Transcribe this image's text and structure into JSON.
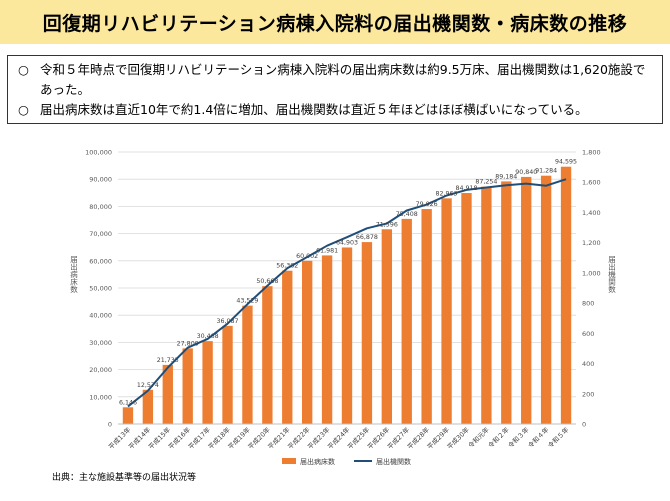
{
  "header": {
    "title": "回復期リハビリテーション病棟入院料の届出機関数・病床数の推移"
  },
  "summary": {
    "bullets": [
      {
        "mark": "○",
        "text": "令和５年時点で回復期リハビリテーション病棟入院料の届出病床数は約9.5万床、届出機関数は1,620施設であった。"
      },
      {
        "mark": "○",
        "text": "届出病床数は直近10年で約1.4倍に増加、届出機関数は直近５年ほどはほぼ横ばいになっている。"
      }
    ]
  },
  "source": "出典：主な施設基準等の届出状況等",
  "chart_data": {
    "type": "bar+line",
    "categories": [
      "平成13年",
      "平成14年",
      "平成15年",
      "平成16年",
      "平成17年",
      "平成18年",
      "平成19年",
      "平成20年",
      "平成21年",
      "平成22年",
      "平成23年",
      "平成24年",
      "平成25年",
      "平成26年",
      "平成27年",
      "平成28年",
      "平成29年",
      "平成30年",
      "令和元年",
      "令和２年",
      "令和３年",
      "令和４年",
      "令和５年"
    ],
    "series": [
      {
        "name": "届出病床数",
        "axis": "left",
        "kind": "bar",
        "color": "#ed7d31",
        "values": [
          6146,
          12574,
          21735,
          27809,
          30468,
          36087,
          43529,
          50668,
          56362,
          60002,
          61981,
          64903,
          66878,
          71596,
          75408,
          79026,
          82963,
          84918,
          87254,
          89184,
          90840,
          91284,
          94595
        ],
        "labels": [
          "6,146",
          "12,574",
          "21,735",
          "27,809",
          "30,468",
          "36,087",
          "43,529",
          "50,668",
          "56,362",
          "60,002",
          "61,981",
          "64,903",
          "66,878",
          "71,596",
          "75,408",
          "79,026",
          "82,963",
          "84,918",
          "87,254",
          "89,184",
          "90,840",
          "91,284",
          "94,595"
        ]
      },
      {
        "name": "届出機関数",
        "axis": "right",
        "kind": "line",
        "color": "#1f4e79",
        "values": [
          116,
          220,
          373,
          505,
          563,
          664,
          793,
          915,
          1031,
          1105,
          1180,
          1236,
          1295,
          1327,
          1413,
          1452,
          1512,
          1549,
          1565,
          1580,
          1591,
          1577,
          1620
        ]
      }
    ],
    "y_left": {
      "label": "届出病床数",
      "min": 0,
      "max": 100000,
      "step": 10000,
      "ticks": [
        "0",
        "10,000",
        "20,000",
        "30,000",
        "40,000",
        "50,000",
        "60,000",
        "70,000",
        "80,000",
        "90,000",
        "100,000"
      ]
    },
    "y_right": {
      "label": "届出機関数",
      "min": 0,
      "max": 1800,
      "step": 200,
      "ticks": [
        "0",
        "200",
        "400",
        "600",
        "800",
        "1,000",
        "1,200",
        "1,400",
        "1,600",
        "1,800"
      ]
    },
    "grid": true,
    "legend": "bottom-center",
    "legend_entries": [
      "届出病床数",
      "届出機関数"
    ]
  }
}
